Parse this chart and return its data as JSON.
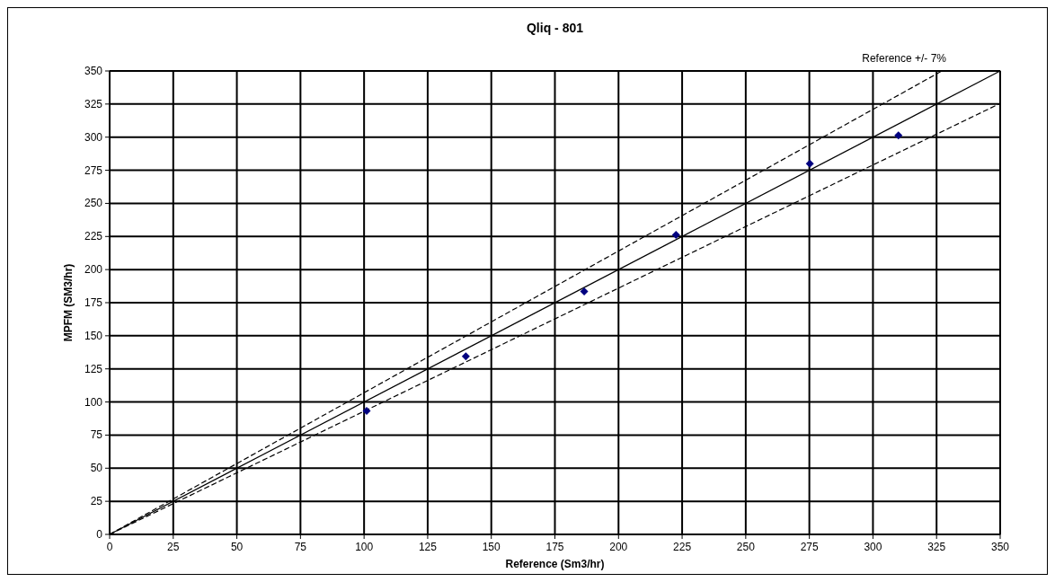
{
  "chart_data": {
    "type": "scatter",
    "title": "Qliq - 801",
    "xlabel": "Reference (Sm3/hr)",
    "ylabel": "MPFM (SM3/hr)",
    "annotations": [
      "Reference +/- 7%"
    ],
    "xlim": [
      0,
      350
    ],
    "ylim": [
      0,
      350
    ],
    "xticks": [
      0,
      25,
      50,
      75,
      100,
      125,
      150,
      175,
      200,
      225,
      250,
      275,
      300,
      325,
      350
    ],
    "yticks": [
      0,
      25,
      50,
      75,
      100,
      125,
      150,
      175,
      200,
      225,
      250,
      275,
      300,
      325,
      350
    ],
    "grid": true,
    "series": [
      {
        "type": "line",
        "color": "#000000",
        "x": [
          0,
          350
        ],
        "values": [
          0,
          350
        ],
        "line_style": "solid"
      },
      {
        "type": "line",
        "color": "#000000",
        "x": [
          0,
          327.1
        ],
        "values": [
          0,
          350
        ],
        "line_style": "dashed"
      },
      {
        "type": "line",
        "color": "#000000",
        "x": [
          0,
          350
        ],
        "values": [
          0,
          325.5
        ],
        "line_style": "dashed"
      },
      {
        "color": "#000080",
        "x": [
          101,
          140,
          186.5,
          222.6,
          275.2,
          310
        ],
        "values": [
          93.2,
          134.5,
          183.5,
          226.2,
          280,
          301.4
        ],
        "marker": "diamond"
      }
    ]
  }
}
